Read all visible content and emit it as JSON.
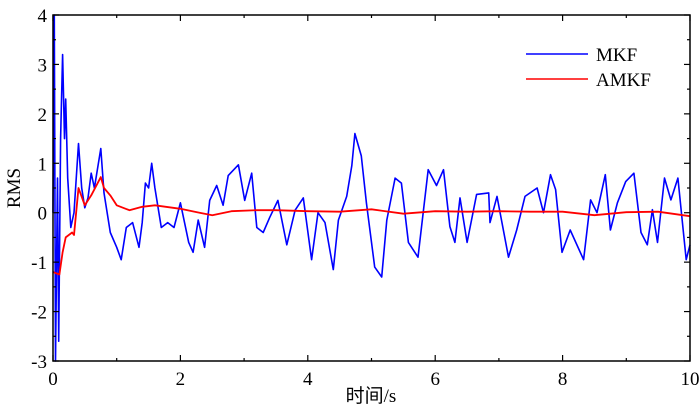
{
  "chart_data": {
    "type": "line",
    "title": "",
    "xlabel": "时间/s",
    "ylabel": "RMS",
    "xlim": [
      0,
      10
    ],
    "ylim": [
      -3,
      4
    ],
    "xticks": [
      "0",
      "2",
      "4",
      "6",
      "8",
      "10"
    ],
    "yticks": [
      "-3",
      "-2",
      "-1",
      "0",
      "1",
      "2",
      "3",
      "4"
    ],
    "legend_position": "top-right",
    "grid": false,
    "series": [
      {
        "name": "MKF",
        "color": "#0000ff",
        "points": [
          [
            0,
            0
          ],
          [
            0.02,
            4
          ],
          [
            0.04,
            -3
          ],
          [
            0.07,
            0.7
          ],
          [
            0.09,
            -2.6
          ],
          [
            0.12,
            1.5
          ],
          [
            0.15,
            3.2
          ],
          [
            0.18,
            1.5
          ],
          [
            0.2,
            2.3
          ],
          [
            0.23,
            0.7
          ],
          [
            0.28,
            -0.3
          ],
          [
            0.33,
            0
          ],
          [
            0.4,
            1.4
          ],
          [
            0.45,
            0.5
          ],
          [
            0.5,
            0.1
          ],
          [
            0.55,
            0.3
          ],
          [
            0.6,
            0.8
          ],
          [
            0.65,
            0.5
          ],
          [
            0.75,
            1.3
          ],
          [
            0.8,
            0.4
          ],
          [
            0.9,
            -0.4
          ],
          [
            1.0,
            -0.7
          ],
          [
            1.07,
            -0.95
          ],
          [
            1.15,
            -0.3
          ],
          [
            1.25,
            -0.2
          ],
          [
            1.35,
            -0.7
          ],
          [
            1.4,
            -0.2
          ],
          [
            1.45,
            0.6
          ],
          [
            1.5,
            0.5
          ],
          [
            1.55,
            1.0
          ],
          [
            1.6,
            0.5
          ],
          [
            1.7,
            -0.3
          ],
          [
            1.8,
            -0.2
          ],
          [
            1.9,
            -0.3
          ],
          [
            2.0,
            0.2
          ],
          [
            2.13,
            -0.6
          ],
          [
            2.2,
            -0.8
          ],
          [
            2.28,
            -0.15
          ],
          [
            2.38,
            -0.7
          ],
          [
            2.46,
            0.25
          ],
          [
            2.57,
            0.55
          ],
          [
            2.67,
            0.15
          ],
          [
            2.75,
            0.75
          ],
          [
            2.91,
            0.97
          ],
          [
            3.01,
            0.25
          ],
          [
            3.12,
            0.8
          ],
          [
            3.2,
            -0.3
          ],
          [
            3.3,
            -0.4
          ],
          [
            3.4,
            -0.1
          ],
          [
            3.53,
            0.25
          ],
          [
            3.67,
            -0.65
          ],
          [
            3.8,
            0.05
          ],
          [
            3.93,
            0.3
          ],
          [
            4.06,
            -0.95
          ],
          [
            4.16,
            0
          ],
          [
            4.27,
            -0.2
          ],
          [
            4.4,
            -1.15
          ],
          [
            4.48,
            -0.15
          ],
          [
            4.61,
            0.33
          ],
          [
            4.69,
            0.95
          ],
          [
            4.74,
            1.6
          ],
          [
            4.84,
            1.15
          ],
          [
            4.92,
            0.2
          ],
          [
            5.05,
            -1.1
          ],
          [
            5.16,
            -1.3
          ],
          [
            5.24,
            -0.15
          ],
          [
            5.37,
            0.7
          ],
          [
            5.47,
            0.6
          ],
          [
            5.58,
            -0.6
          ],
          [
            5.73,
            -0.9
          ],
          [
            5.89,
            0.87
          ],
          [
            6.02,
            0.55
          ],
          [
            6.13,
            0.87
          ],
          [
            6.23,
            -0.28
          ],
          [
            6.31,
            -0.6
          ],
          [
            6.39,
            0.3
          ],
          [
            6.5,
            -0.6
          ],
          [
            6.65,
            0.37
          ],
          [
            6.84,
            0.4
          ],
          [
            6.86,
            -0.2
          ],
          [
            6.97,
            0.33
          ],
          [
            7.15,
            -0.9
          ],
          [
            7.28,
            -0.35
          ],
          [
            7.41,
            0.33
          ],
          [
            7.6,
            0.5
          ],
          [
            7.7,
            0
          ],
          [
            7.81,
            0.77
          ],
          [
            7.89,
            0.47
          ],
          [
            7.99,
            -0.8
          ],
          [
            8.12,
            -0.35
          ],
          [
            8.33,
            -0.95
          ],
          [
            8.44,
            0.26
          ],
          [
            8.54,
            0
          ],
          [
            8.67,
            0.77
          ],
          [
            8.75,
            -0.35
          ],
          [
            8.86,
            0.2
          ],
          [
            8.99,
            0.63
          ],
          [
            9.12,
            0.8
          ],
          [
            9.23,
            -0.4
          ],
          [
            9.33,
            -0.65
          ],
          [
            9.41,
            0.06
          ],
          [
            9.49,
            -0.6
          ],
          [
            9.6,
            0.7
          ],
          [
            9.7,
            0.26
          ],
          [
            9.81,
            0.7
          ],
          [
            9.94,
            -0.95
          ],
          [
            10,
            -0.65
          ]
        ]
      },
      {
        "name": "AMKF",
        "color": "#ff0000",
        "points": [
          [
            0,
            -1.2
          ],
          [
            0.1,
            -1.25
          ],
          [
            0.15,
            -0.8
          ],
          [
            0.2,
            -0.5
          ],
          [
            0.3,
            -0.4
          ],
          [
            0.33,
            -0.45
          ],
          [
            0.4,
            0.5
          ],
          [
            0.5,
            0.15
          ],
          [
            0.6,
            0.35
          ],
          [
            0.75,
            0.72
          ],
          [
            0.8,
            0.5
          ],
          [
            0.9,
            0.35
          ],
          [
            1.0,
            0.15
          ],
          [
            1.2,
            0.05
          ],
          [
            1.4,
            0.12
          ],
          [
            1.6,
            0.15
          ],
          [
            2.0,
            0.08
          ],
          [
            2.3,
            0
          ],
          [
            2.5,
            -0.05
          ],
          [
            2.8,
            0.03
          ],
          [
            3.2,
            0.05
          ],
          [
            3.5,
            0.05
          ],
          [
            4.0,
            0.03
          ],
          [
            4.5,
            0.02
          ],
          [
            5.0,
            0.07
          ],
          [
            5.5,
            -0.02
          ],
          [
            6.0,
            0.03
          ],
          [
            6.5,
            0.02
          ],
          [
            7.0,
            0.03
          ],
          [
            7.5,
            0.02
          ],
          [
            8.0,
            0.02
          ],
          [
            8.5,
            -0.05
          ],
          [
            9.0,
            0.01
          ],
          [
            9.5,
            0.02
          ],
          [
            10,
            -0.07
          ]
        ]
      }
    ]
  }
}
